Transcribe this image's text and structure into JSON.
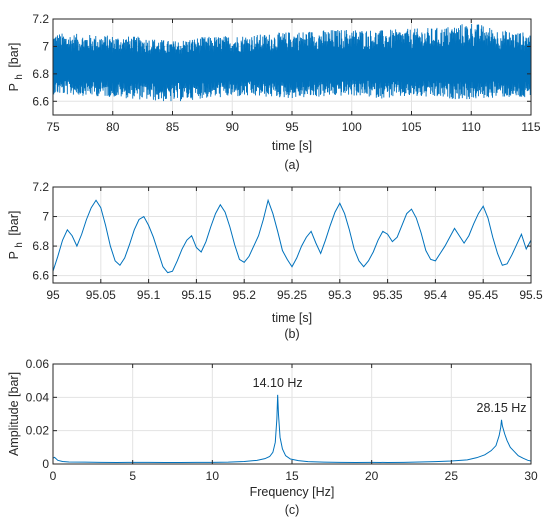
{
  "colors": {
    "line": "#0072BD",
    "grid": "#e3e3e3",
    "axis": "#262626"
  },
  "chart_data": [
    {
      "type": "line",
      "caption": "(a)",
      "xlabel": "time [s]",
      "ylabel_main": "P",
      "ylabel_sub": "h",
      "ylabel_unit": "[bar]",
      "xlim": [
        75,
        115
      ],
      "ylim": [
        6.5,
        7.2
      ],
      "xticks": [
        75,
        80,
        85,
        90,
        95,
        100,
        105,
        110,
        115
      ],
      "yticks": [
        6.6,
        6.8,
        7.0,
        7.2
      ],
      "xtick_labels": [
        "75",
        "80",
        "85",
        "90",
        "95",
        "100",
        "105",
        "110",
        "115"
      ],
      "ytick_labels": [
        "6.6",
        "6.8",
        "7",
        "7.2"
      ],
      "grid": true,
      "series": [
        {
          "x": [
            75,
            77.5,
            80,
            82.5,
            85,
            87.5,
            90,
            92.5,
            95,
            97.5,
            100,
            102.5,
            105,
            107.5,
            110,
            112.5,
            115
          ],
          "upper": [
            7.1,
            7.09,
            7.08,
            7.07,
            7.04,
            7.07,
            7.08,
            7.09,
            7.11,
            7.12,
            7.13,
            7.12,
            7.13,
            7.14,
            7.18,
            7.12,
            7.1
          ],
          "lower": [
            6.65,
            6.64,
            6.63,
            6.61,
            6.59,
            6.62,
            6.63,
            6.63,
            6.62,
            6.63,
            6.64,
            6.62,
            6.63,
            6.62,
            6.61,
            6.63,
            6.61
          ],
          "mean": 6.85
        }
      ]
    },
    {
      "type": "line",
      "caption": "(b)",
      "xlabel": "time [s]",
      "ylabel_main": "P",
      "ylabel_sub": "h",
      "ylabel_unit": "[bar]",
      "xlim": [
        95,
        95.5
      ],
      "ylim": [
        6.55,
        7.2
      ],
      "xticks": [
        95,
        95.05,
        95.1,
        95.15,
        95.2,
        95.25,
        95.3,
        95.35,
        95.4,
        95.45,
        95.5
      ],
      "yticks": [
        6.6,
        6.8,
        7.0,
        7.2
      ],
      "xtick_labels": [
        "95",
        "95.05",
        "95.1",
        "95.15",
        "95.2",
        "95.25",
        "95.3",
        "95.35",
        "95.4",
        "95.45",
        "95.5"
      ],
      "ytick_labels": [
        "6.6",
        "6.8",
        "7",
        "7.2"
      ],
      "grid": true,
      "series": [
        {
          "x": [
            95.0,
            95.005,
            95.01,
            95.015,
            95.02,
            95.025,
            95.03,
            95.035,
            95.04,
            95.045,
            95.05,
            95.055,
            95.06,
            95.065,
            95.07,
            95.075,
            95.08,
            95.085,
            95.09,
            95.095,
            95.1,
            95.105,
            95.11,
            95.115,
            95.12,
            95.125,
            95.13,
            95.135,
            95.14,
            95.145,
            95.15,
            95.155,
            95.16,
            95.165,
            95.17,
            95.175,
            95.18,
            95.185,
            95.19,
            95.195,
            95.2,
            95.205,
            95.21,
            95.215,
            95.22,
            95.225,
            95.23,
            95.235,
            95.24,
            95.245,
            95.25,
            95.255,
            95.26,
            95.265,
            95.27,
            95.275,
            95.28,
            95.285,
            95.29,
            95.295,
            95.3,
            95.305,
            95.31,
            95.315,
            95.32,
            95.325,
            95.33,
            95.335,
            95.34,
            95.345,
            95.35,
            95.355,
            95.36,
            95.365,
            95.37,
            95.375,
            95.38,
            95.385,
            95.39,
            95.395,
            95.4,
            95.405,
            95.41,
            95.415,
            95.42,
            95.425,
            95.43,
            95.435,
            95.44,
            95.445,
            95.45,
            95.455,
            95.46,
            95.465,
            95.47,
            95.475,
            95.48,
            95.485,
            95.49,
            95.495,
            95.5
          ],
          "y": [
            6.63,
            6.73,
            6.84,
            6.91,
            6.87,
            6.8,
            6.88,
            6.98,
            7.06,
            7.11,
            7.06,
            6.94,
            6.8,
            6.7,
            6.67,
            6.72,
            6.81,
            6.91,
            6.98,
            7.0,
            6.94,
            6.86,
            6.76,
            6.66,
            6.62,
            6.63,
            6.7,
            6.78,
            6.84,
            6.87,
            6.79,
            6.76,
            6.83,
            6.93,
            7.02,
            7.08,
            7.03,
            6.93,
            6.81,
            6.71,
            6.69,
            6.73,
            6.8,
            6.87,
            6.98,
            7.11,
            7.02,
            6.9,
            6.77,
            6.71,
            6.66,
            6.72,
            6.8,
            6.86,
            6.9,
            6.82,
            6.75,
            6.84,
            6.94,
            7.03,
            7.09,
            7.02,
            6.91,
            6.78,
            6.7,
            6.66,
            6.7,
            6.76,
            6.84,
            6.9,
            6.88,
            6.83,
            6.86,
            6.94,
            7.02,
            7.05,
            6.99,
            6.89,
            6.77,
            6.71,
            6.7,
            6.75,
            6.8,
            6.86,
            6.92,
            6.87,
            6.82,
            6.87,
            6.95,
            7.02,
            7.07,
            6.99,
            6.86,
            6.75,
            6.67,
            6.68,
            6.74,
            6.81,
            6.88,
            6.78,
            6.84
          ]
        }
      ]
    },
    {
      "type": "line",
      "caption": "(c)",
      "xlabel": "Frequency [Hz]",
      "ylabel": "Amplitude [bar]",
      "xlim": [
        0,
        30
      ],
      "ylim": [
        0,
        0.06
      ],
      "xticks": [
        0,
        5,
        10,
        15,
        20,
        25,
        30
      ],
      "yticks": [
        0,
        0.02,
        0.04,
        0.06
      ],
      "xtick_labels": [
        "0",
        "5",
        "10",
        "15",
        "20",
        "25",
        "30"
      ],
      "ytick_labels": [
        "0",
        "0.02",
        "0.04",
        "0.06"
      ],
      "grid": true,
      "annotations": [
        {
          "text": "14.10 Hz",
          "x": 14.1,
          "y": 0.0415
        },
        {
          "text": "28.15 Hz",
          "x": 28.15,
          "y": 0.0265
        }
      ],
      "series": [
        {
          "x": [
            0,
            0.1,
            0.3,
            0.6,
            1,
            2,
            3,
            4,
            5,
            6,
            7,
            8,
            9,
            10,
            11,
            12,
            12.8,
            13.3,
            13.6,
            13.8,
            13.95,
            14.05,
            14.1,
            14.15,
            14.25,
            14.4,
            14.6,
            14.9,
            15.4,
            16,
            17,
            18,
            19,
            20,
            21,
            22,
            23,
            24,
            25,
            26,
            26.6,
            27.1,
            27.5,
            27.8,
            28.0,
            28.1,
            28.15,
            28.2,
            28.35,
            28.5,
            28.7,
            28.9,
            29.2,
            29.5,
            29.8,
            30
          ],
          "y": [
            0.0035,
            0.004,
            0.0022,
            0.0015,
            0.0012,
            0.0011,
            0.001,
            0.0009,
            0.001,
            0.001,
            0.0009,
            0.0009,
            0.001,
            0.001,
            0.0011,
            0.0015,
            0.0022,
            0.0032,
            0.0045,
            0.007,
            0.013,
            0.027,
            0.0415,
            0.03,
            0.016,
            0.009,
            0.005,
            0.003,
            0.002,
            0.0014,
            0.0011,
            0.001,
            0.0009,
            0.001,
            0.0009,
            0.001,
            0.0012,
            0.0014,
            0.0018,
            0.0025,
            0.0038,
            0.0055,
            0.008,
            0.011,
            0.017,
            0.022,
            0.0265,
            0.023,
            0.018,
            0.014,
            0.01,
            0.008,
            0.005,
            0.0035,
            0.0022,
            0.0018
          ]
        }
      ]
    }
  ]
}
